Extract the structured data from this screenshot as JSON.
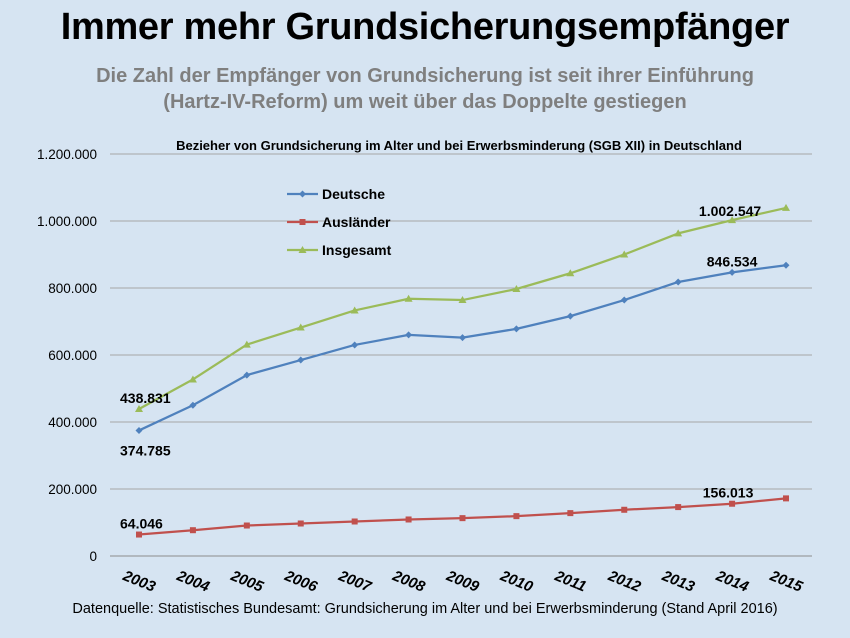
{
  "page": {
    "title": "Immer mehr Grundsicherungsempfänger",
    "subtitle_lines": [
      "Die Zahl der Empfänger von Grundsicherung ist seit ihrer Einführung",
      "(Hartz-IV-Reform) um weit über das Doppelte gestiegen"
    ],
    "source": "Datenquelle: Statistisches Bundesamt: Grundsicherung im Alter und bei Erwerbsminderung (Stand April 2016)"
  },
  "chart_data": {
    "type": "line",
    "title": "Bezieher von Grundsicherung im Alter und bei Erwerbsminderung (SGB XII) in Deutschland",
    "xlabel": "",
    "ylabel": "",
    "x": [
      "2003",
      "2004",
      "2005",
      "2006",
      "2007",
      "2008",
      "2009",
      "2010",
      "2011",
      "2012",
      "2013",
      "2014",
      "2015"
    ],
    "ylim": [
      0,
      1200000
    ],
    "yticks": [
      0,
      200000,
      400000,
      600000,
      800000,
      1000000,
      1200000
    ],
    "ytick_labels": [
      "0",
      "200.000",
      "400.000",
      "600.000",
      "800.000",
      "1.000.000",
      "1.200.000"
    ],
    "grid": "horizontal",
    "legend_position": "top-left",
    "series": [
      {
        "name": "Deutsche",
        "color": "#4f81bd",
        "marker": "diamond",
        "values": [
          374785,
          450000,
          540000,
          585000,
          630000,
          660000,
          652000,
          678000,
          716000,
          764000,
          818000,
          846534,
          868000
        ]
      },
      {
        "name": "Ausländer",
        "color": "#c0504d",
        "marker": "square",
        "values": [
          64046,
          77000,
          91000,
          97000,
          103000,
          109000,
          113000,
          119000,
          128000,
          138000,
          146000,
          156013,
          172000
        ]
      },
      {
        "name": "Insgesamt",
        "color": "#9bbb59",
        "marker": "triangle",
        "values": [
          438831,
          527000,
          631000,
          682000,
          733000,
          768000,
          764000,
          797000,
          844000,
          900000,
          963000,
          1002547,
          1039000
        ]
      }
    ],
    "annotations": [
      {
        "series": 2,
        "index": 0,
        "text": "438.831"
      },
      {
        "series": 0,
        "index": 0,
        "text": "374.785"
      },
      {
        "series": 1,
        "index": 0,
        "text": "64.046"
      },
      {
        "series": 2,
        "index": 11,
        "text": "1.002.547"
      },
      {
        "series": 0,
        "index": 11,
        "text": "846.534"
      },
      {
        "series": 1,
        "index": 11,
        "text": "156.013"
      }
    ]
  }
}
